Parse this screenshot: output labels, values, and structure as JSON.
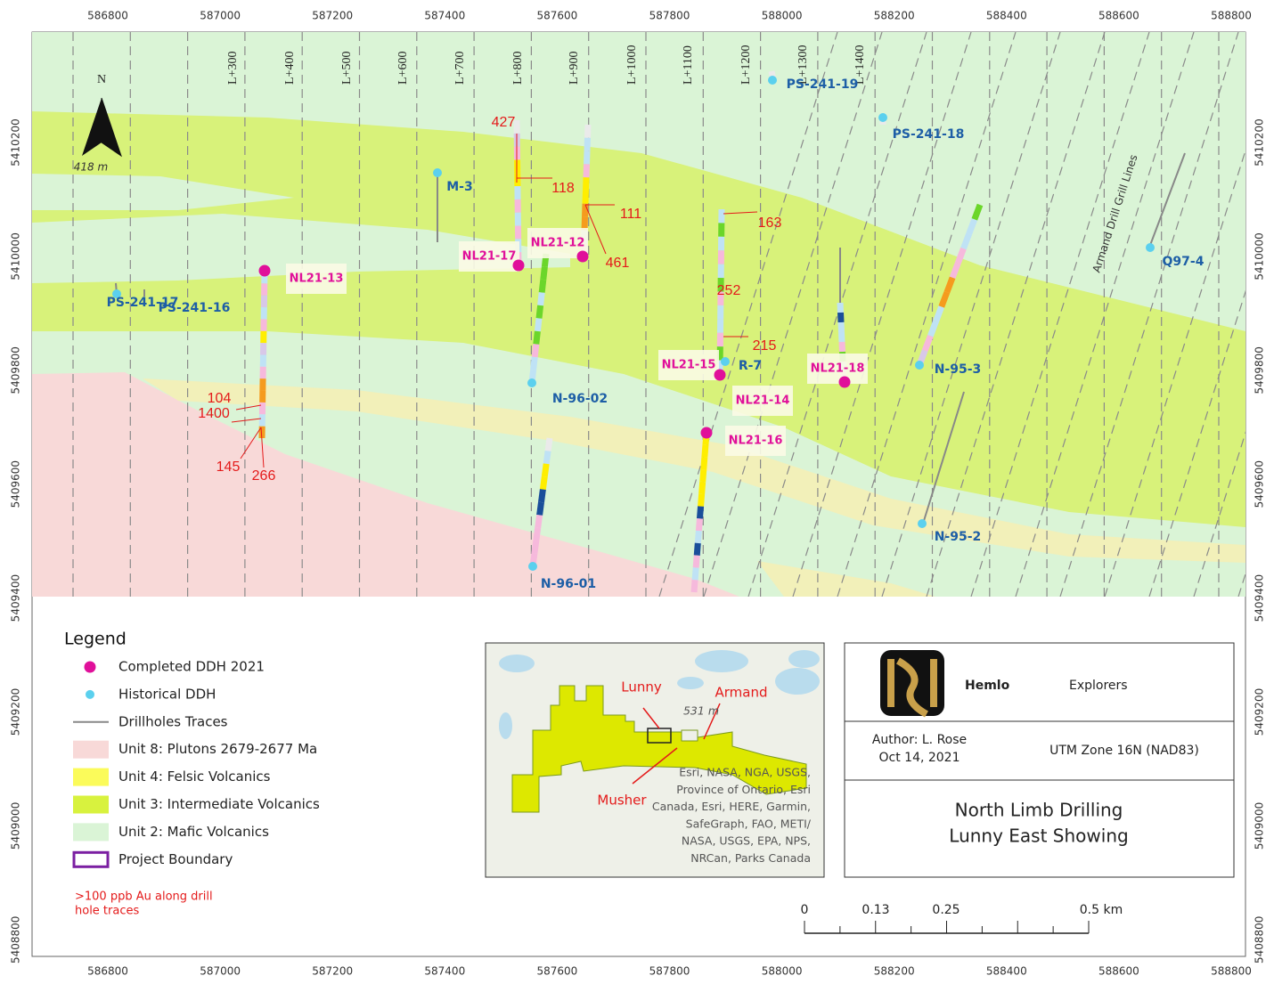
{
  "map": {
    "x_labels": [
      586800,
      587000,
      587200,
      587400,
      587600,
      587800,
      588000,
      588200,
      588400,
      588600,
      588800
    ],
    "y_labels": [
      5410200,
      5410000,
      5409800,
      5409600,
      5409400,
      5409200,
      5409000,
      5408800
    ],
    "line_labels": [
      "L+300",
      "L+400",
      "L+500",
      "L+600",
      "L+700",
      "L+800",
      "L+900",
      "L+1000",
      "L+1100",
      "L+1200",
      "L+1300",
      "L+1400"
    ],
    "north": "N",
    "north_scale": "418 m",
    "grill_lines_label": "Armand Drill Grill Lines",
    "completed_holes": [
      "NL21-13",
      "NL21-17",
      "NL21-12",
      "NL21-15",
      "NL21-14",
      "NL21-16",
      "NL21-18"
    ],
    "historical_holes": [
      "PS-241-19",
      "PS-241-18",
      "M-3",
      "Q97-4",
      "PS-241-17",
      "PS-241-16",
      "N-96-02",
      "N-95-3",
      "N-95-2",
      "R-7",
      "N-96-01"
    ],
    "assay_labels": [
      "427",
      "118",
      "111",
      "461",
      "163",
      "252",
      "215",
      "104",
      "1400",
      "145",
      "266"
    ]
  },
  "legend": {
    "title": "Legend",
    "items": [
      "Completed DDH 2021",
      "Historical DDH",
      "Drillholes Traces",
      "Unit 8: Plutons 2679-2677 Ma",
      "Unit 4: Felsic Volcanics",
      "Unit 3: Intermediate Volcanics",
      "Unit 2: Mafic Volcanics",
      "Project Boundary"
    ],
    "note": [
      ">100 ppb Au along drill",
      "hole traces"
    ]
  },
  "inset": {
    "labels": [
      "Lunny",
      "Armand",
      "Musher"
    ],
    "scale": "531 m",
    "attribution": [
      "Esri, NASA, NGA, USGS,",
      "Province of Ontario, Esri",
      "Canada, Esri, HERE, Garmin,",
      "SafeGraph, FAO, METI/",
      "NASA, USGS, EPA, NPS,",
      "NRCan, Parks Canada"
    ]
  },
  "title_block": {
    "logo_bold": "Hemlo",
    "logo_light": "Explorers",
    "author": "Author: L. Rose",
    "date": "Oct 14, 2021",
    "projection": "UTM Zone 16N (NAD83)",
    "title": [
      "North Limb Drilling",
      "Lunny East Showing"
    ]
  },
  "scale_bar": {
    "labels": [
      "0",
      "0.13",
      "0.25",
      "0.5 km"
    ]
  }
}
